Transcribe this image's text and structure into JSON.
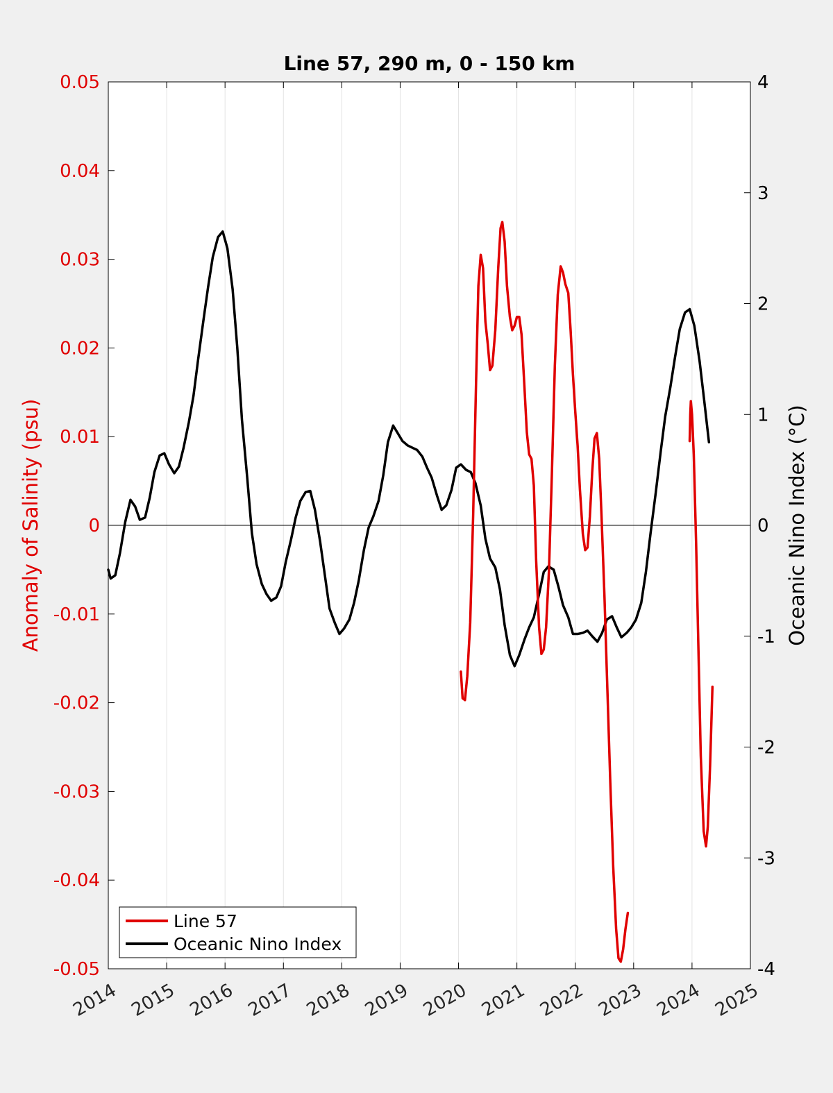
{
  "chart_data": {
    "type": "line",
    "title": "Line 57, 290 m, 0 - 150 km",
    "xlabel": "",
    "ylabel_left": "Anomaly of Salinity (psu)",
    "ylabel_right": "Oceanic Nino Index (°C)",
    "xlim": [
      2014,
      2025
    ],
    "ylim_left": [
      -0.05,
      0.05
    ],
    "ylim_right": [
      -4,
      4
    ],
    "x_ticks": [
      "2014",
      "2015",
      "2016",
      "2017",
      "2018",
      "2019",
      "2020",
      "2021",
      "2022",
      "2023",
      "2024",
      "2025"
    ],
    "y_left_ticks": [
      "-0.05",
      "-0.04",
      "-0.03",
      "-0.02",
      "-0.01",
      "0",
      "0.01",
      "0.02",
      "0.03",
      "0.04",
      "0.05"
    ],
    "y_right_ticks": [
      "-4",
      "-3",
      "-2",
      "-1",
      "0",
      "1",
      "2",
      "3",
      "4"
    ],
    "grid": "vertical",
    "zero_line": true,
    "legend_position": "bottom-left",
    "colors": {
      "salinity": "#e00000",
      "oni": "#000000",
      "left_axis": "#e00000",
      "right_axis": "#000000"
    },
    "series": [
      {
        "name": "Line 57",
        "axis": "left",
        "color": "#e00000",
        "segments": [
          [
            [
              2020.04,
              -0.0165
            ],
            [
              2020.07,
              -0.0195
            ],
            [
              2020.11,
              -0.0197
            ],
            [
              2020.15,
              -0.017
            ],
            [
              2020.2,
              -0.011
            ],
            [
              2020.25,
              0.001
            ],
            [
              2020.3,
              0.016
            ],
            [
              2020.34,
              0.027
            ],
            [
              2020.38,
              0.0305
            ],
            [
              2020.42,
              0.029
            ],
            [
              2020.46,
              0.023
            ],
            [
              2020.5,
              0.0205
            ],
            [
              2020.54,
              0.0175
            ],
            [
              2020.58,
              0.018
            ],
            [
              2020.63,
              0.022
            ],
            [
              2020.68,
              0.029
            ],
            [
              2020.72,
              0.0335
            ],
            [
              2020.75,
              0.0342
            ],
            [
              2020.79,
              0.032
            ],
            [
              2020.83,
              0.027
            ],
            [
              2020.88,
              0.0235
            ],
            [
              2020.92,
              0.022
            ],
            [
              2020.96,
              0.0225
            ],
            [
              2021.0,
              0.0235
            ],
            [
              2021.04,
              0.0235
            ],
            [
              2021.08,
              0.0215
            ],
            [
              2021.13,
              0.0155
            ],
            [
              2021.17,
              0.0105
            ],
            [
              2021.21,
              0.008
            ],
            [
              2021.25,
              0.0075
            ],
            [
              2021.29,
              0.0045
            ],
            [
              2021.33,
              -0.004
            ],
            [
              2021.38,
              -0.0115
            ],
            [
              2021.42,
              -0.0145
            ],
            [
              2021.46,
              -0.014
            ],
            [
              2021.5,
              -0.0115
            ],
            [
              2021.55,
              -0.005
            ],
            [
              2021.6,
              0.006
            ],
            [
              2021.65,
              0.018
            ],
            [
              2021.7,
              0.026
            ],
            [
              2021.75,
              0.0292
            ],
            [
              2021.79,
              0.0285
            ],
            [
              2021.83,
              0.0272
            ],
            [
              2021.88,
              0.0262
            ],
            [
              2021.92,
              0.022
            ],
            [
              2021.96,
              0.017
            ],
            [
              2022.0,
              0.0128
            ],
            [
              2022.04,
              0.009
            ],
            [
              2022.08,
              0.004
            ],
            [
              2022.13,
              -0.001
            ],
            [
              2022.17,
              -0.0028
            ],
            [
              2022.21,
              -0.0025
            ],
            [
              2022.25,
              0.001
            ],
            [
              2022.29,
              0.006
            ],
            [
              2022.33,
              0.0098
            ],
            [
              2022.37,
              0.0104
            ],
            [
              2022.41,
              0.0075
            ],
            [
              2022.45,
              0.001
            ],
            [
              2022.5,
              -0.008
            ],
            [
              2022.55,
              -0.0185
            ],
            [
              2022.6,
              -0.029
            ],
            [
              2022.65,
              -0.0385
            ],
            [
              2022.7,
              -0.0455
            ],
            [
              2022.74,
              -0.0488
            ],
            [
              2022.78,
              -0.0492
            ],
            [
              2022.82,
              -0.0478
            ],
            [
              2022.86,
              -0.0455
            ],
            [
              2022.9,
              -0.0437
            ]
          ],
          [
            [
              2023.96,
              0.0095
            ],
            [
              2023.97,
              0.0125
            ],
            [
              2023.98,
              0.014
            ],
            [
              2024.0,
              0.0125
            ],
            [
              2024.03,
              0.008
            ],
            [
              2024.07,
              -0.002
            ],
            [
              2024.11,
              -0.014
            ],
            [
              2024.15,
              -0.026
            ],
            [
              2024.2,
              -0.0345
            ],
            [
              2024.24,
              -0.0362
            ],
            [
              2024.27,
              -0.034
            ],
            [
              2024.31,
              -0.027
            ],
            [
              2024.35,
              -0.0182
            ]
          ]
        ]
      },
      {
        "name": "Oceanic Nino Index",
        "axis": "right",
        "color": "#000000",
        "segments": [
          [
            [
              2014.0,
              -0.4
            ],
            [
              2014.04,
              -0.48
            ],
            [
              2014.12,
              -0.45
            ],
            [
              2014.2,
              -0.25
            ],
            [
              2014.29,
              0.03
            ],
            [
              2014.38,
              0.23
            ],
            [
              2014.46,
              0.17
            ],
            [
              2014.54,
              0.05
            ],
            [
              2014.63,
              0.07
            ],
            [
              2014.71,
              0.25
            ],
            [
              2014.79,
              0.48
            ],
            [
              2014.88,
              0.63
            ],
            [
              2014.96,
              0.65
            ],
            [
              2015.04,
              0.55
            ],
            [
              2015.13,
              0.47
            ],
            [
              2015.21,
              0.53
            ],
            [
              2015.29,
              0.7
            ],
            [
              2015.38,
              0.93
            ],
            [
              2015.46,
              1.17
            ],
            [
              2015.54,
              1.5
            ],
            [
              2015.63,
              1.85
            ],
            [
              2015.71,
              2.15
            ],
            [
              2015.79,
              2.42
            ],
            [
              2015.88,
              2.6
            ],
            [
              2015.96,
              2.65
            ],
            [
              2016.04,
              2.5
            ],
            [
              2016.13,
              2.13
            ],
            [
              2016.21,
              1.6
            ],
            [
              2016.29,
              0.95
            ],
            [
              2016.38,
              0.43
            ],
            [
              2016.46,
              -0.07
            ],
            [
              2016.54,
              -0.35
            ],
            [
              2016.63,
              -0.53
            ],
            [
              2016.71,
              -0.62
            ],
            [
              2016.79,
              -0.68
            ],
            [
              2016.88,
              -0.65
            ],
            [
              2016.96,
              -0.55
            ],
            [
              2017.04,
              -0.33
            ],
            [
              2017.13,
              -0.13
            ],
            [
              2017.21,
              0.07
            ],
            [
              2017.29,
              0.22
            ],
            [
              2017.38,
              0.3
            ],
            [
              2017.46,
              0.31
            ],
            [
              2017.54,
              0.14
            ],
            [
              2017.63,
              -0.15
            ],
            [
              2017.71,
              -0.45
            ],
            [
              2017.79,
              -0.75
            ],
            [
              2017.88,
              -0.88
            ],
            [
              2017.96,
              -0.98
            ],
            [
              2018.04,
              -0.93
            ],
            [
              2018.13,
              -0.85
            ],
            [
              2018.21,
              -0.7
            ],
            [
              2018.29,
              -0.5
            ],
            [
              2018.38,
              -0.22
            ],
            [
              2018.46,
              -0.02
            ],
            [
              2018.54,
              0.08
            ],
            [
              2018.63,
              0.22
            ],
            [
              2018.71,
              0.45
            ],
            [
              2018.79,
              0.75
            ],
            [
              2018.88,
              0.9
            ],
            [
              2018.96,
              0.83
            ],
            [
              2019.04,
              0.76
            ],
            [
              2019.13,
              0.72
            ],
            [
              2019.21,
              0.7
            ],
            [
              2019.29,
              0.68
            ],
            [
              2019.38,
              0.62
            ],
            [
              2019.46,
              0.52
            ],
            [
              2019.54,
              0.43
            ],
            [
              2019.63,
              0.27
            ],
            [
              2019.71,
              0.14
            ],
            [
              2019.79,
              0.18
            ],
            [
              2019.88,
              0.32
            ],
            [
              2019.96,
              0.52
            ],
            [
              2020.04,
              0.55
            ],
            [
              2020.13,
              0.5
            ],
            [
              2020.21,
              0.48
            ],
            [
              2020.29,
              0.38
            ],
            [
              2020.38,
              0.18
            ],
            [
              2020.46,
              -0.12
            ],
            [
              2020.54,
              -0.3
            ],
            [
              2020.63,
              -0.38
            ],
            [
              2020.71,
              -0.58
            ],
            [
              2020.79,
              -0.9
            ],
            [
              2020.88,
              -1.17
            ],
            [
              2020.96,
              -1.27
            ],
            [
              2021.04,
              -1.17
            ],
            [
              2021.13,
              -1.03
            ],
            [
              2021.21,
              -0.92
            ],
            [
              2021.29,
              -0.83
            ],
            [
              2021.38,
              -0.62
            ],
            [
              2021.46,
              -0.42
            ],
            [
              2021.54,
              -0.37
            ],
            [
              2021.63,
              -0.4
            ],
            [
              2021.71,
              -0.55
            ],
            [
              2021.79,
              -0.72
            ],
            [
              2021.88,
              -0.83
            ],
            [
              2021.96,
              -0.98
            ],
            [
              2022.04,
              -0.98
            ],
            [
              2022.13,
              -0.97
            ],
            [
              2022.21,
              -0.95
            ],
            [
              2022.29,
              -1.0
            ],
            [
              2022.38,
              -1.05
            ],
            [
              2022.46,
              -0.97
            ],
            [
              2022.54,
              -0.85
            ],
            [
              2022.63,
              -0.82
            ],
            [
              2022.71,
              -0.92
            ],
            [
              2022.79,
              -1.01
            ],
            [
              2022.88,
              -0.97
            ],
            [
              2022.96,
              -0.92
            ],
            [
              2023.04,
              -0.85
            ],
            [
              2023.13,
              -0.7
            ],
            [
              2023.21,
              -0.42
            ],
            [
              2023.29,
              -0.07
            ],
            [
              2023.38,
              0.3
            ],
            [
              2023.46,
              0.65
            ],
            [
              2023.54,
              0.98
            ],
            [
              2023.63,
              1.25
            ],
            [
              2023.71,
              1.52
            ],
            [
              2023.79,
              1.77
            ],
            [
              2023.88,
              1.92
            ],
            [
              2023.96,
              1.95
            ],
            [
              2024.04,
              1.8
            ],
            [
              2024.13,
              1.48
            ],
            [
              2024.21,
              1.12
            ],
            [
              2024.29,
              0.75
            ]
          ]
        ]
      }
    ]
  }
}
